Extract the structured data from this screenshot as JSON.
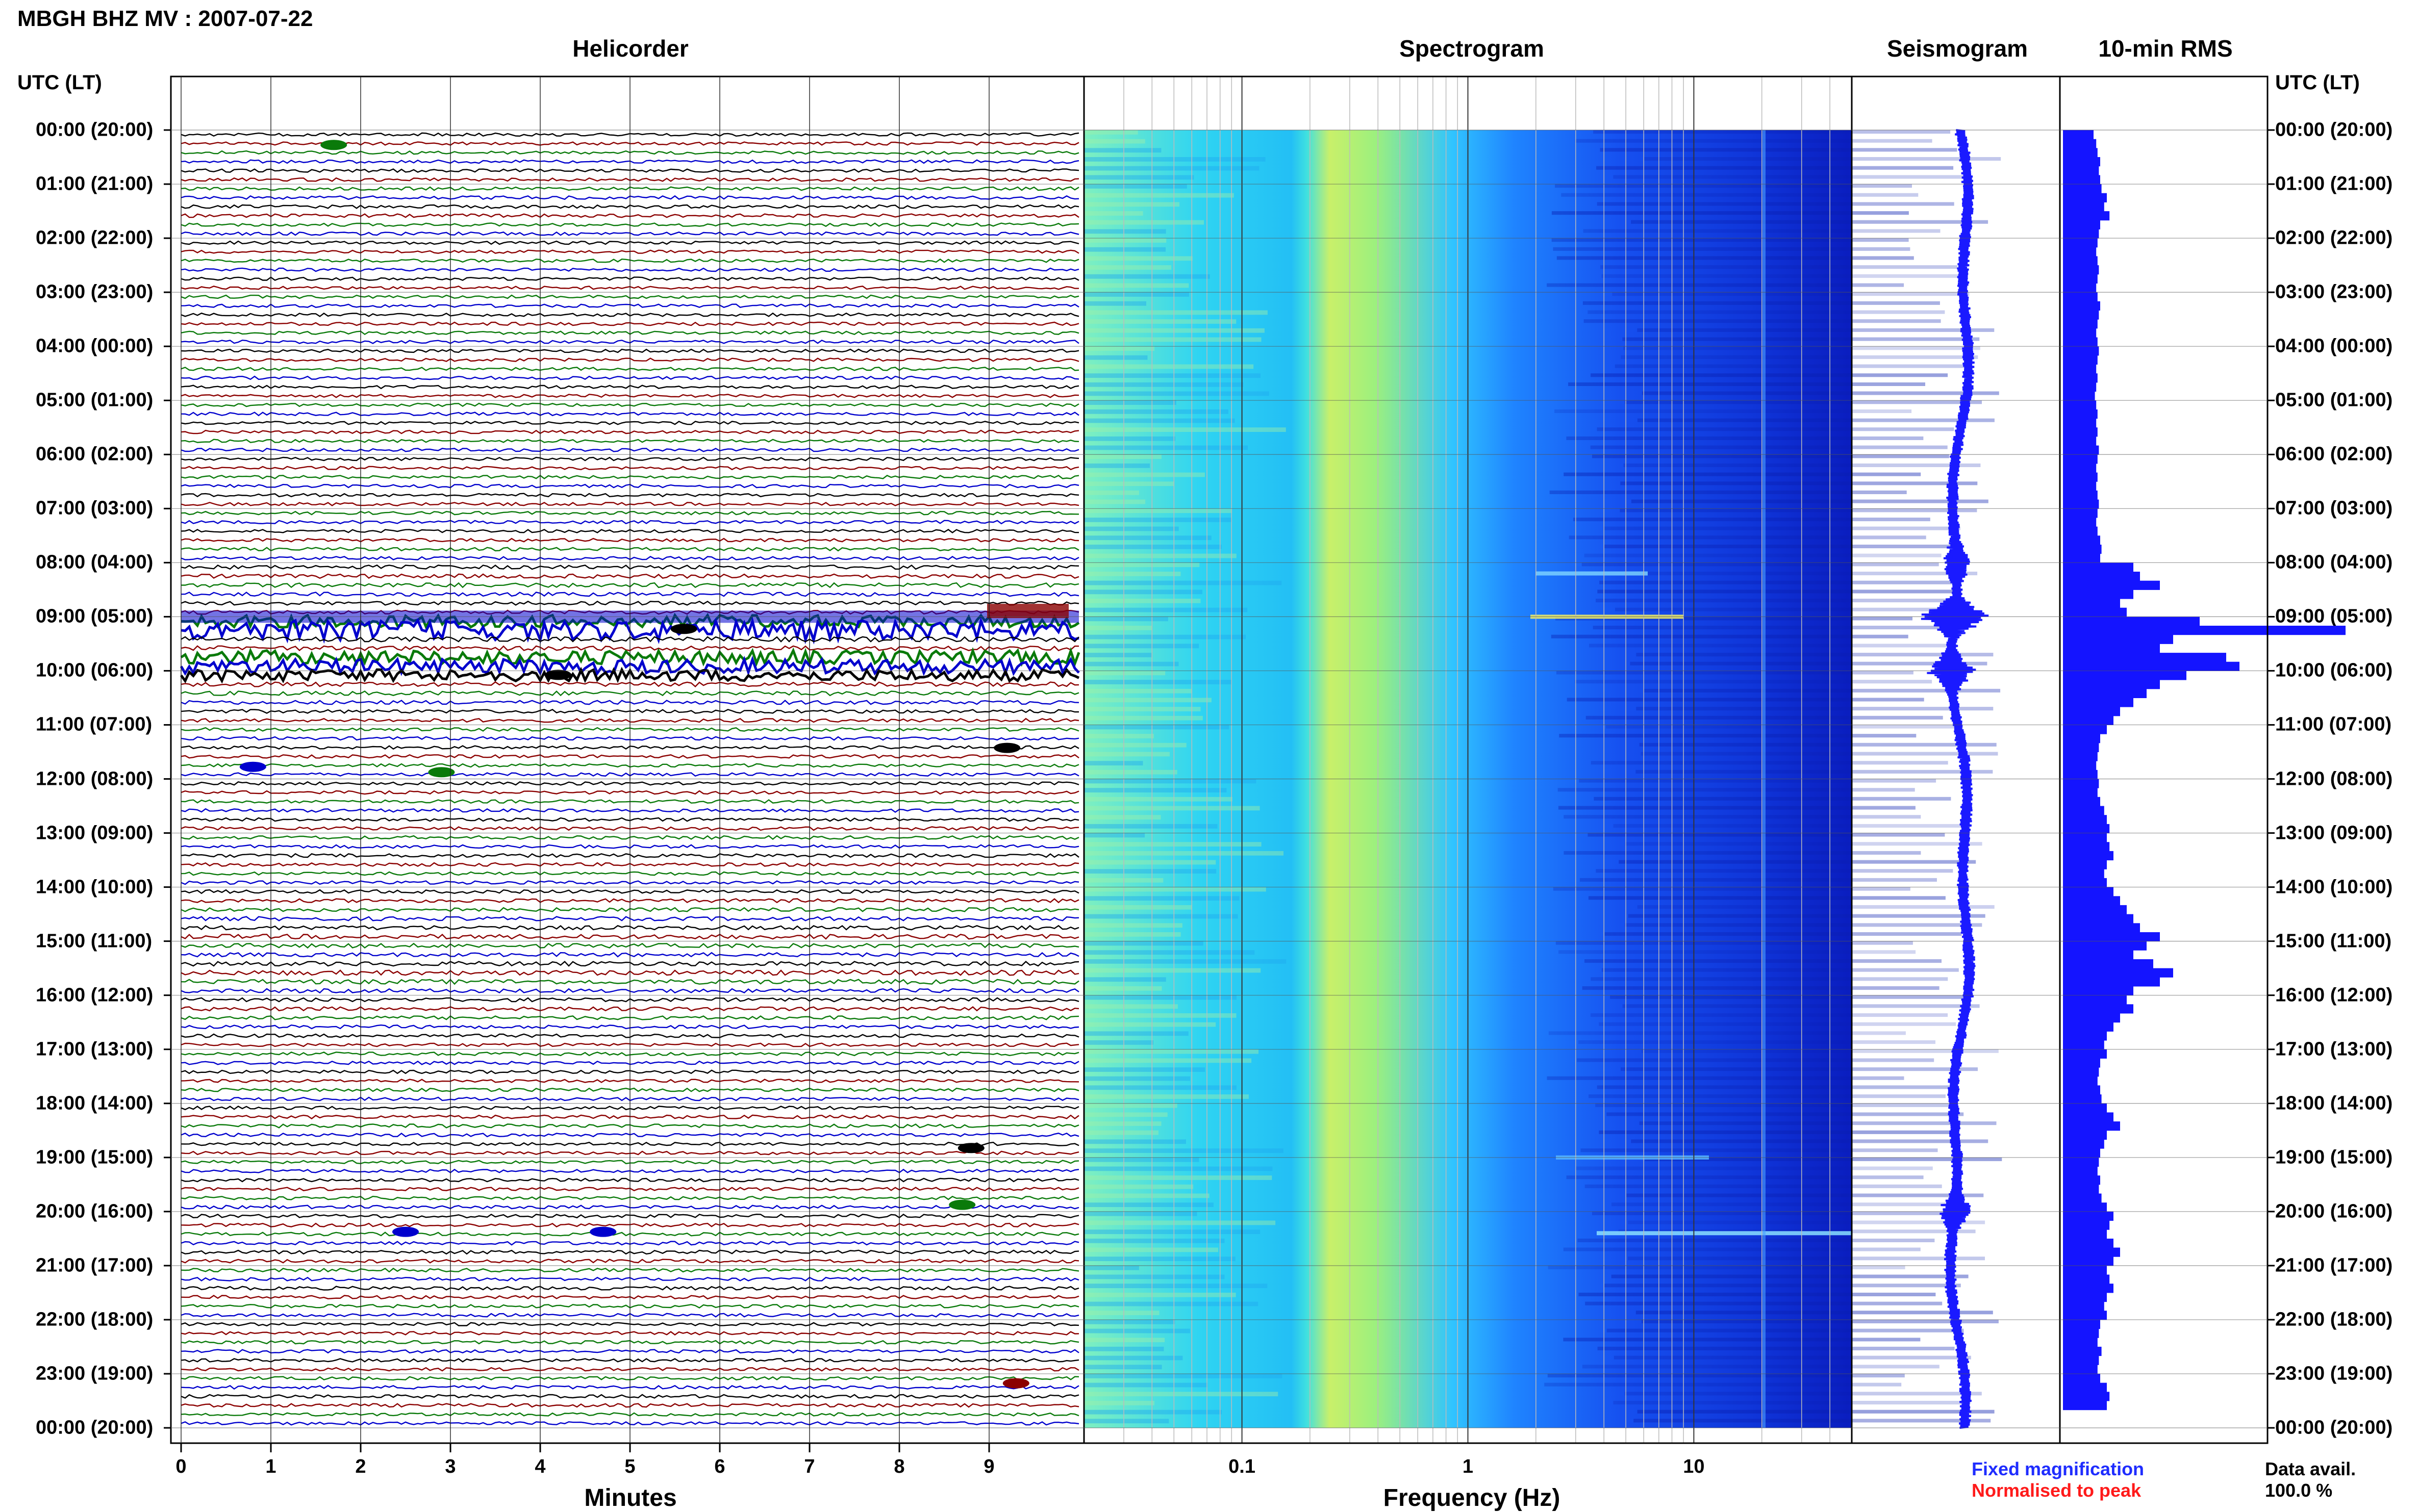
{
  "title": "MBGH BHZ MV : 2007-07-22",
  "panels": {
    "helicorder": "Helicorder",
    "spectrogram": "Spectrogram",
    "seismogram": "Seismogram",
    "rms": "10-min RMS"
  },
  "utc_header": "UTC (LT)",
  "time_labels": [
    "00:00 (20:00)",
    "01:00 (21:00)",
    "02:00 (22:00)",
    "03:00 (23:00)",
    "04:00 (00:00)",
    "05:00 (01:00)",
    "06:00 (02:00)",
    "07:00 (03:00)",
    "08:00 (04:00)",
    "09:00 (05:00)",
    "10:00 (06:00)",
    "11:00 (07:00)",
    "12:00 (08:00)",
    "13:00 (09:00)",
    "14:00 (10:00)",
    "15:00 (11:00)",
    "16:00 (12:00)",
    "17:00 (13:00)",
    "18:00 (14:00)",
    "19:00 (15:00)",
    "20:00 (16:00)",
    "21:00 (17:00)",
    "22:00 (18:00)",
    "23:00 (19:00)",
    "00:00 (20:00)"
  ],
  "colors": {
    "trace_cycle": [
      "#000000",
      "#8b0000",
      "#0a7a0a",
      "#0000cd"
    ],
    "seismogram": "#1a1aff",
    "rms_bar": "#1414ff",
    "grid": "#000000"
  },
  "helicorder_axis": {
    "ticks": [
      "0",
      "1",
      "2",
      "3",
      "4",
      "5",
      "6",
      "7",
      "8",
      "9"
    ],
    "xlabel": "Minutes"
  },
  "spectrogram_axis": {
    "ticks": [
      "0.1",
      "1",
      "10"
    ],
    "xlabel": "Frequency (Hz)",
    "scale": "log"
  },
  "chart_data": [
    {
      "type": "line",
      "title": "Helicorder",
      "xlabel": "Minutes",
      "xlim": [
        0,
        10
      ],
      "rows_per_hour": 6,
      "hours": 24,
      "notable_events_utc": [
        "08:00",
        "09:00",
        "10:00",
        "19:00",
        "20:00"
      ]
    },
    {
      "type": "heatmap",
      "title": "Spectrogram",
      "xlabel": "Frequency (Hz)",
      "xscale": "log",
      "xlim": [
        0.02,
        50
      ],
      "colormap": [
        "#0a1fcf",
        "#1e63ff",
        "#23c9ff",
        "#7cf0c8",
        "#f0f040"
      ],
      "peak_band_hz": [
        0.2,
        0.8
      ]
    },
    {
      "type": "line",
      "title": "Seismogram",
      "events_utc": [
        "08:00",
        "09:00",
        "10:00",
        "20:00"
      ]
    },
    {
      "type": "bar",
      "title": "10-min RMS",
      "orientation": "horizontal",
      "legend": [
        "Fixed magnification",
        "Normalised to peak"
      ],
      "values": [
        1.0,
        1.02,
        1.03,
        1.05,
        1.04,
        1.05,
        1.06,
        1.1,
        1.08,
        1.12,
        1.05,
        1.04,
        1.03,
        1.02,
        1.03,
        1.04,
        1.03,
        1.02,
        1.03,
        1.05,
        1.04,
        1.03,
        1.02,
        1.03,
        1.04,
        1.03,
        1.02,
        1.03,
        1.02,
        1.01,
        1.02,
        1.03,
        1.02,
        1.03,
        1.02,
        1.04,
        1.03,
        1.02,
        1.03,
        1.02,
        1.03,
        1.04,
        1.03,
        1.02,
        1.03,
        1.05,
        1.06,
        1.05,
        1.3,
        1.35,
        1.5,
        1.3,
        1.2,
        1.25,
        1.8,
        2.9,
        1.6,
        1.5,
        2.0,
        2.1,
        1.7,
        1.5,
        1.4,
        1.3,
        1.2,
        1.15,
        1.1,
        1.05,
        1.04,
        1.03,
        1.02,
        1.03,
        1.04,
        1.03,
        1.05,
        1.08,
        1.1,
        1.12,
        1.1,
        1.12,
        1.15,
        1.1,
        1.08,
        1.1,
        1.15,
        1.2,
        1.25,
        1.3,
        1.35,
        1.5,
        1.4,
        1.3,
        1.45,
        1.6,
        1.5,
        1.3,
        1.25,
        1.3,
        1.2,
        1.15,
        1.1,
        1.08,
        1.1,
        1.05,
        1.04,
        1.03,
        1.05,
        1.06,
        1.1,
        1.15,
        1.2,
        1.1,
        1.08,
        1.05,
        1.04,
        1.03,
        1.05,
        1.04,
        1.06,
        1.1,
        1.15,
        1.12,
        1.1,
        1.15,
        1.2,
        1.15,
        1.1,
        1.12,
        1.15,
        1.1,
        1.08,
        1.1,
        1.05,
        1.04,
        1.03,
        1.06,
        1.04,
        1.03,
        1.05,
        1.1,
        1.12,
        1.1
      ]
    }
  ],
  "legend": {
    "fixed": "Fixed magnification",
    "normalised": "Normalised to peak"
  },
  "availability": {
    "label": "Data avail.",
    "value": "100.0 %"
  }
}
